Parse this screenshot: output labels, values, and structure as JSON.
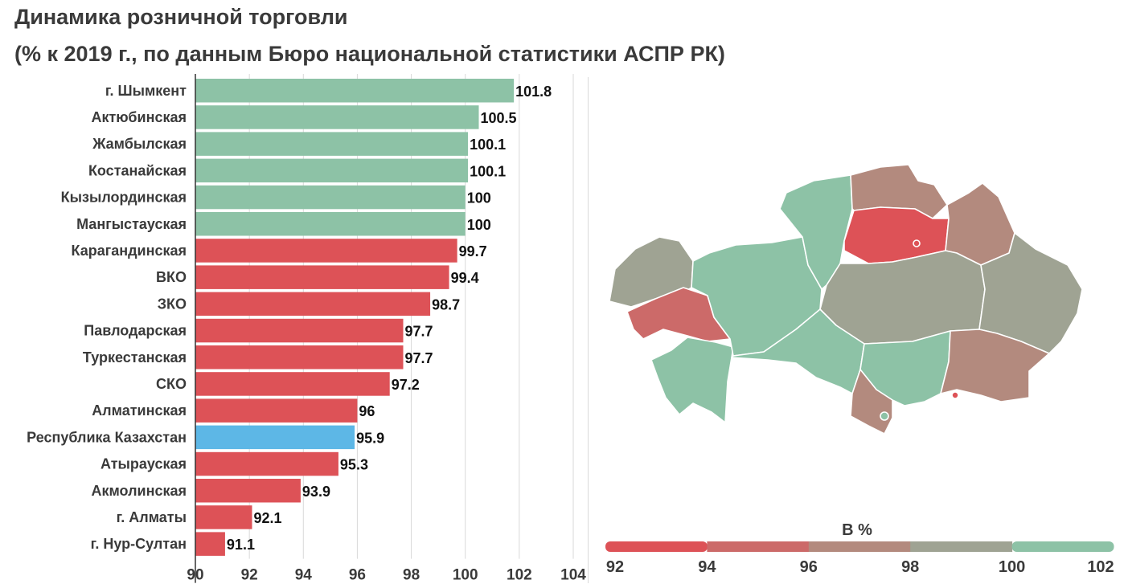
{
  "title": {
    "line1": "Динамика розничной торговли",
    "line2": "(% к 2019 г., по данным Бюро национальной статистики АСПР РК)"
  },
  "colors": {
    "above_100": "#8dc2a6",
    "below_100": "#dd5257",
    "national": "#5db7e6",
    "gridline": "#d9d9d9",
    "axis": "#333333"
  },
  "chart_data": [
    {
      "type": "bar",
      "orientation": "horizontal",
      "categories": [
        "г. Шымкент",
        "Актюбинская",
        "Жамбылская",
        "Костанайская",
        "Кызылординская",
        "Мангыстауская",
        "Карагандинская",
        "ВКО",
        "ЗКО",
        "Павлодарская",
        "Туркестанская",
        "СКО",
        "Алматинская",
        "Республика Казахстан",
        "Атырауская",
        "Акмолинская",
        "г. Алматы",
        "г. Нур-Султан"
      ],
      "values": [
        101.8,
        100.5,
        100.1,
        100.1,
        100,
        100,
        99.7,
        99.4,
        98.7,
        97.7,
        97.7,
        97.2,
        96,
        95.9,
        95.3,
        93.9,
        92.1,
        91.1
      ],
      "value_labels": [
        "101.8",
        "100.5",
        "100.1",
        "100.1",
        "100",
        "100",
        "99.7",
        "99.4",
        "98.7",
        "97.7",
        "97.7",
        "97.2",
        "96",
        "95.9",
        "95.3",
        "93.9",
        "92.1",
        "91.1"
      ],
      "highlight": "Республика Казахстан",
      "xlim": [
        90,
        104
      ],
      "xticks": [
        "90",
        "92",
        "94",
        "96",
        "98",
        "100",
        "102",
        "104"
      ],
      "grid": true
    },
    {
      "type": "choropleth",
      "legend_title": "В %",
      "scale_ticks": [
        "92",
        "94",
        "96",
        "98",
        "100",
        "102"
      ],
      "scale_colors": [
        "#dd5257",
        "#cc6a69",
        "#b38a7e",
        "#9fa393",
        "#8dc2a6"
      ],
      "legend_position": "bottom"
    }
  ]
}
